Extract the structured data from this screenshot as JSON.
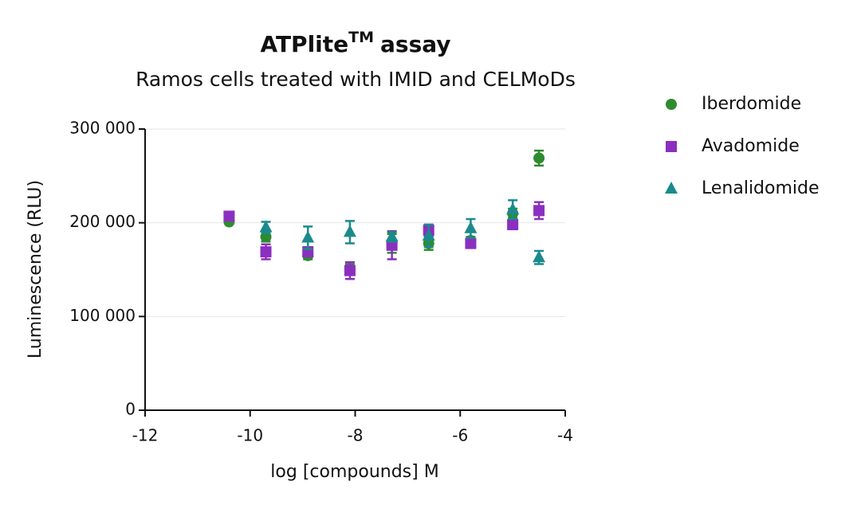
{
  "chart_data": {
    "type": "scatter",
    "title": "ATPlite",
    "title_superscript": "TM",
    "title_suffix": "assay",
    "subtitle": "Ramos cells treated with IMID and CELMoDs",
    "x_label": "log [compounds] M",
    "y_label": "Luminescence (RLU)",
    "x": [
      -10.4,
      -9.7,
      -8.9,
      -8.1,
      -7.3,
      -6.6,
      -5.8,
      -5.0,
      -4.5
    ],
    "xlim": [
      -12,
      -4
    ],
    "xticks": [
      -12,
      -10,
      -8,
      -6,
      -4
    ],
    "ylim": [
      0,
      300000
    ],
    "yticks": [
      0,
      {
        "value": 100000,
        "label": "100 000"
      },
      {
        "value": 200000,
        "label": "200 000"
      },
      {
        "value": 300000,
        "label": "300 000"
      }
    ],
    "grid": true,
    "legend": "right",
    "series": [
      {
        "name": "Iberdomide",
        "color": "#2e8b2e",
        "marker": "circle",
        "values": [
          201000,
          185000,
          165000,
          151000,
          178000,
          178000,
          181000,
          210000,
          269000
        ],
        "errors": [
          2000,
          5000,
          4000,
          5000,
          10000,
          7000,
          4000,
          5000,
          8000
        ]
      },
      {
        "name": "Avadomide",
        "color": "#8b2fc0",
        "marker": "square",
        "values": [
          207000,
          169000,
          169000,
          149000,
          176000,
          192000,
          178000,
          198000,
          213000
        ],
        "errors": [
          2000,
          8000,
          5000,
          9000,
          15000,
          6000,
          5000,
          4000,
          9000
        ]
      },
      {
        "name": "Lenalidomide",
        "color": "#1b8a8c",
        "marker": "triangle",
        "values": [
          null,
          195000,
          184000,
          190000,
          185000,
          186000,
          194000,
          214000,
          163000
        ],
        "errors": [
          null,
          6000,
          12000,
          12000,
          5000,
          12000,
          10000,
          10000,
          7000
        ]
      }
    ]
  }
}
